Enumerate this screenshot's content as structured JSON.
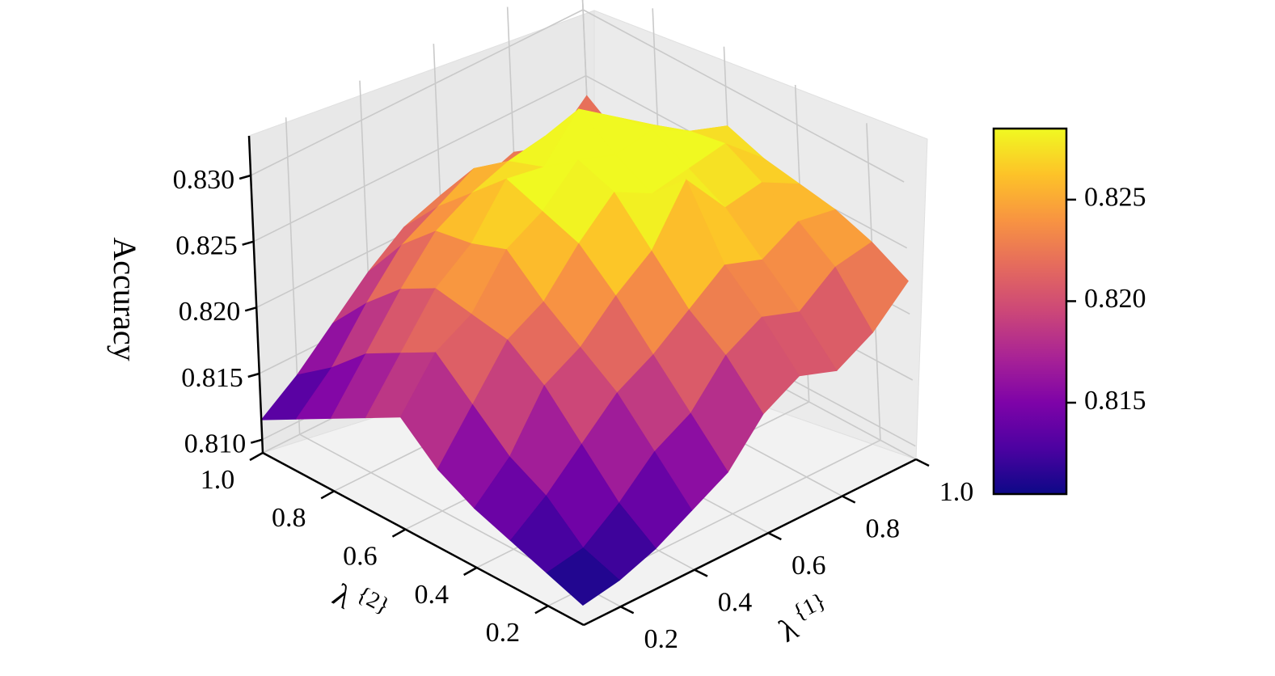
{
  "chart_data": {
    "type": "surface3d",
    "title": "",
    "xlabel": "λ^{1}",
    "ylabel": "λ^{2}",
    "zlabel": "Accuracy",
    "xlim": [
      0.1,
      1.0
    ],
    "ylim": [
      0.1,
      1.0
    ],
    "zlim": [
      0.809,
      0.833
    ],
    "x_ticks": [
      "0.2",
      "0.4",
      "0.6",
      "0.8",
      "1.0"
    ],
    "y_ticks": [
      "0.2",
      "0.4",
      "0.6",
      "0.8",
      "1.0"
    ],
    "z_ticks": [
      "0.810",
      "0.815",
      "0.820",
      "0.825",
      "0.830"
    ],
    "x": [
      0.1,
      0.2,
      0.3,
      0.4,
      0.5,
      0.6,
      0.7,
      0.8,
      0.9,
      1.0
    ],
    "y": [
      0.1,
      0.2,
      0.3,
      0.4,
      0.5,
      0.6,
      0.7,
      0.8,
      0.9,
      1.0
    ],
    "z": [
      [
        0.8105,
        0.811,
        0.812,
        0.8135,
        0.815,
        0.818,
        0.8195,
        0.8185,
        0.82,
        0.8225
      ],
      [
        0.8115,
        0.812,
        0.814,
        0.8165,
        0.818,
        0.821,
        0.8225,
        0.8215,
        0.8235,
        0.824
      ],
      [
        0.8125,
        0.8145,
        0.817,
        0.8195,
        0.821,
        0.823,
        0.825,
        0.824,
        0.8255,
        0.825
      ],
      [
        0.8135,
        0.816,
        0.82,
        0.8215,
        0.824,
        0.826,
        0.83,
        0.8265,
        0.827,
        0.8255
      ],
      [
        0.815,
        0.8185,
        0.822,
        0.8235,
        0.8265,
        0.829,
        0.8275,
        0.828,
        0.8285,
        0.826
      ],
      [
        0.8175,
        0.821,
        0.8225,
        0.826,
        0.8275,
        0.83,
        0.829,
        0.8295,
        0.828,
        0.827
      ],
      [
        0.816,
        0.8195,
        0.823,
        0.825,
        0.8285,
        0.828,
        0.831,
        0.829,
        0.827,
        0.825
      ],
      [
        0.8145,
        0.818,
        0.8215,
        0.8245,
        0.826,
        0.827,
        0.8275,
        0.8265,
        0.8245,
        0.823
      ],
      [
        0.813,
        0.8155,
        0.819,
        0.822,
        0.8235,
        0.825,
        0.824,
        0.823,
        0.822,
        0.8215
      ],
      [
        0.8115,
        0.8135,
        0.816,
        0.8185,
        0.8205,
        0.8215,
        0.821,
        0.822,
        0.821,
        0.8235
      ]
    ],
    "colormap": "plasma",
    "colorbar": {
      "range": [
        0.8105,
        0.8285
      ],
      "ticks": [
        "0.815",
        "0.820",
        "0.825"
      ],
      "tick_values": [
        0.815,
        0.82,
        0.825
      ]
    },
    "grid": true,
    "legend": "none"
  }
}
